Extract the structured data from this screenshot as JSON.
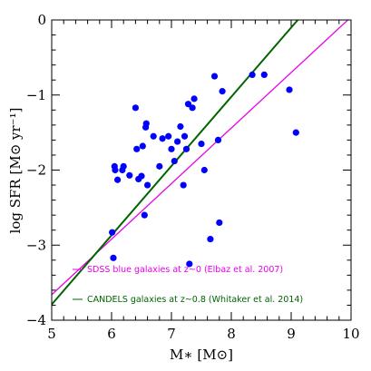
{
  "chart_data": {
    "type": "scatter",
    "xlabel": "M∗ [M⊙]",
    "ylabel": "log SFR [M⊙ yr⁻¹]",
    "xlim": [
      5,
      10
    ],
    "ylim": [
      -4,
      0
    ],
    "x_ticks": [
      "5",
      "6",
      "7",
      "8",
      "9",
      "10"
    ],
    "y_ticks": [
      "0",
      "−1",
      "−2",
      "−3",
      "−4"
    ],
    "grid": false,
    "legend_position": "bottom-right",
    "points": {
      "color": "#0000ff",
      "x": [
        6.01,
        6.03,
        6.05,
        6.06,
        6.1,
        6.18,
        6.2,
        6.3,
        6.4,
        6.42,
        6.45,
        6.5,
        6.52,
        6.55,
        6.57,
        6.58,
        6.6,
        6.7,
        6.8,
        6.85,
        6.95,
        7.0,
        7.05,
        7.1,
        7.15,
        7.2,
        7.22,
        7.25,
        7.28,
        7.3,
        7.35,
        7.38,
        7.5,
        7.55,
        7.65,
        7.72,
        7.78,
        7.8,
        7.85,
        8.35,
        8.55,
        8.97,
        9.08
      ],
      "y": [
        -2.83,
        -3.17,
        -1.95,
        -2.0,
        -2.13,
        -2.0,
        -1.95,
        -2.07,
        -1.17,
        -1.72,
        -2.12,
        -2.08,
        -1.68,
        -2.6,
        -1.43,
        -1.38,
        -2.2,
        -1.55,
        -1.95,
        -1.58,
        -1.55,
        -1.72,
        -1.88,
        -1.62,
        -1.42,
        -2.2,
        -1.55,
        -1.72,
        -1.12,
        -3.25,
        -1.17,
        -1.05,
        -1.65,
        -2.0,
        -2.92,
        -0.75,
        -1.6,
        -2.7,
        -0.95,
        -0.73,
        -0.73,
        -0.93,
        -1.5
      ]
    },
    "lines": [
      {
        "name": "SDSS blue galaxies at z~0 (Elbaz et al. 2007)",
        "color": "#e800e8",
        "x": [
          5,
          10
        ],
        "y": [
          -3.66,
          0.04
        ]
      },
      {
        "name": "CANDELS galaxies at z~0.8 (Whitaker et al. 2014)",
        "color": "#006400",
        "x": [
          5,
          9.11
        ],
        "y": [
          -3.79,
          0
        ]
      }
    ]
  }
}
